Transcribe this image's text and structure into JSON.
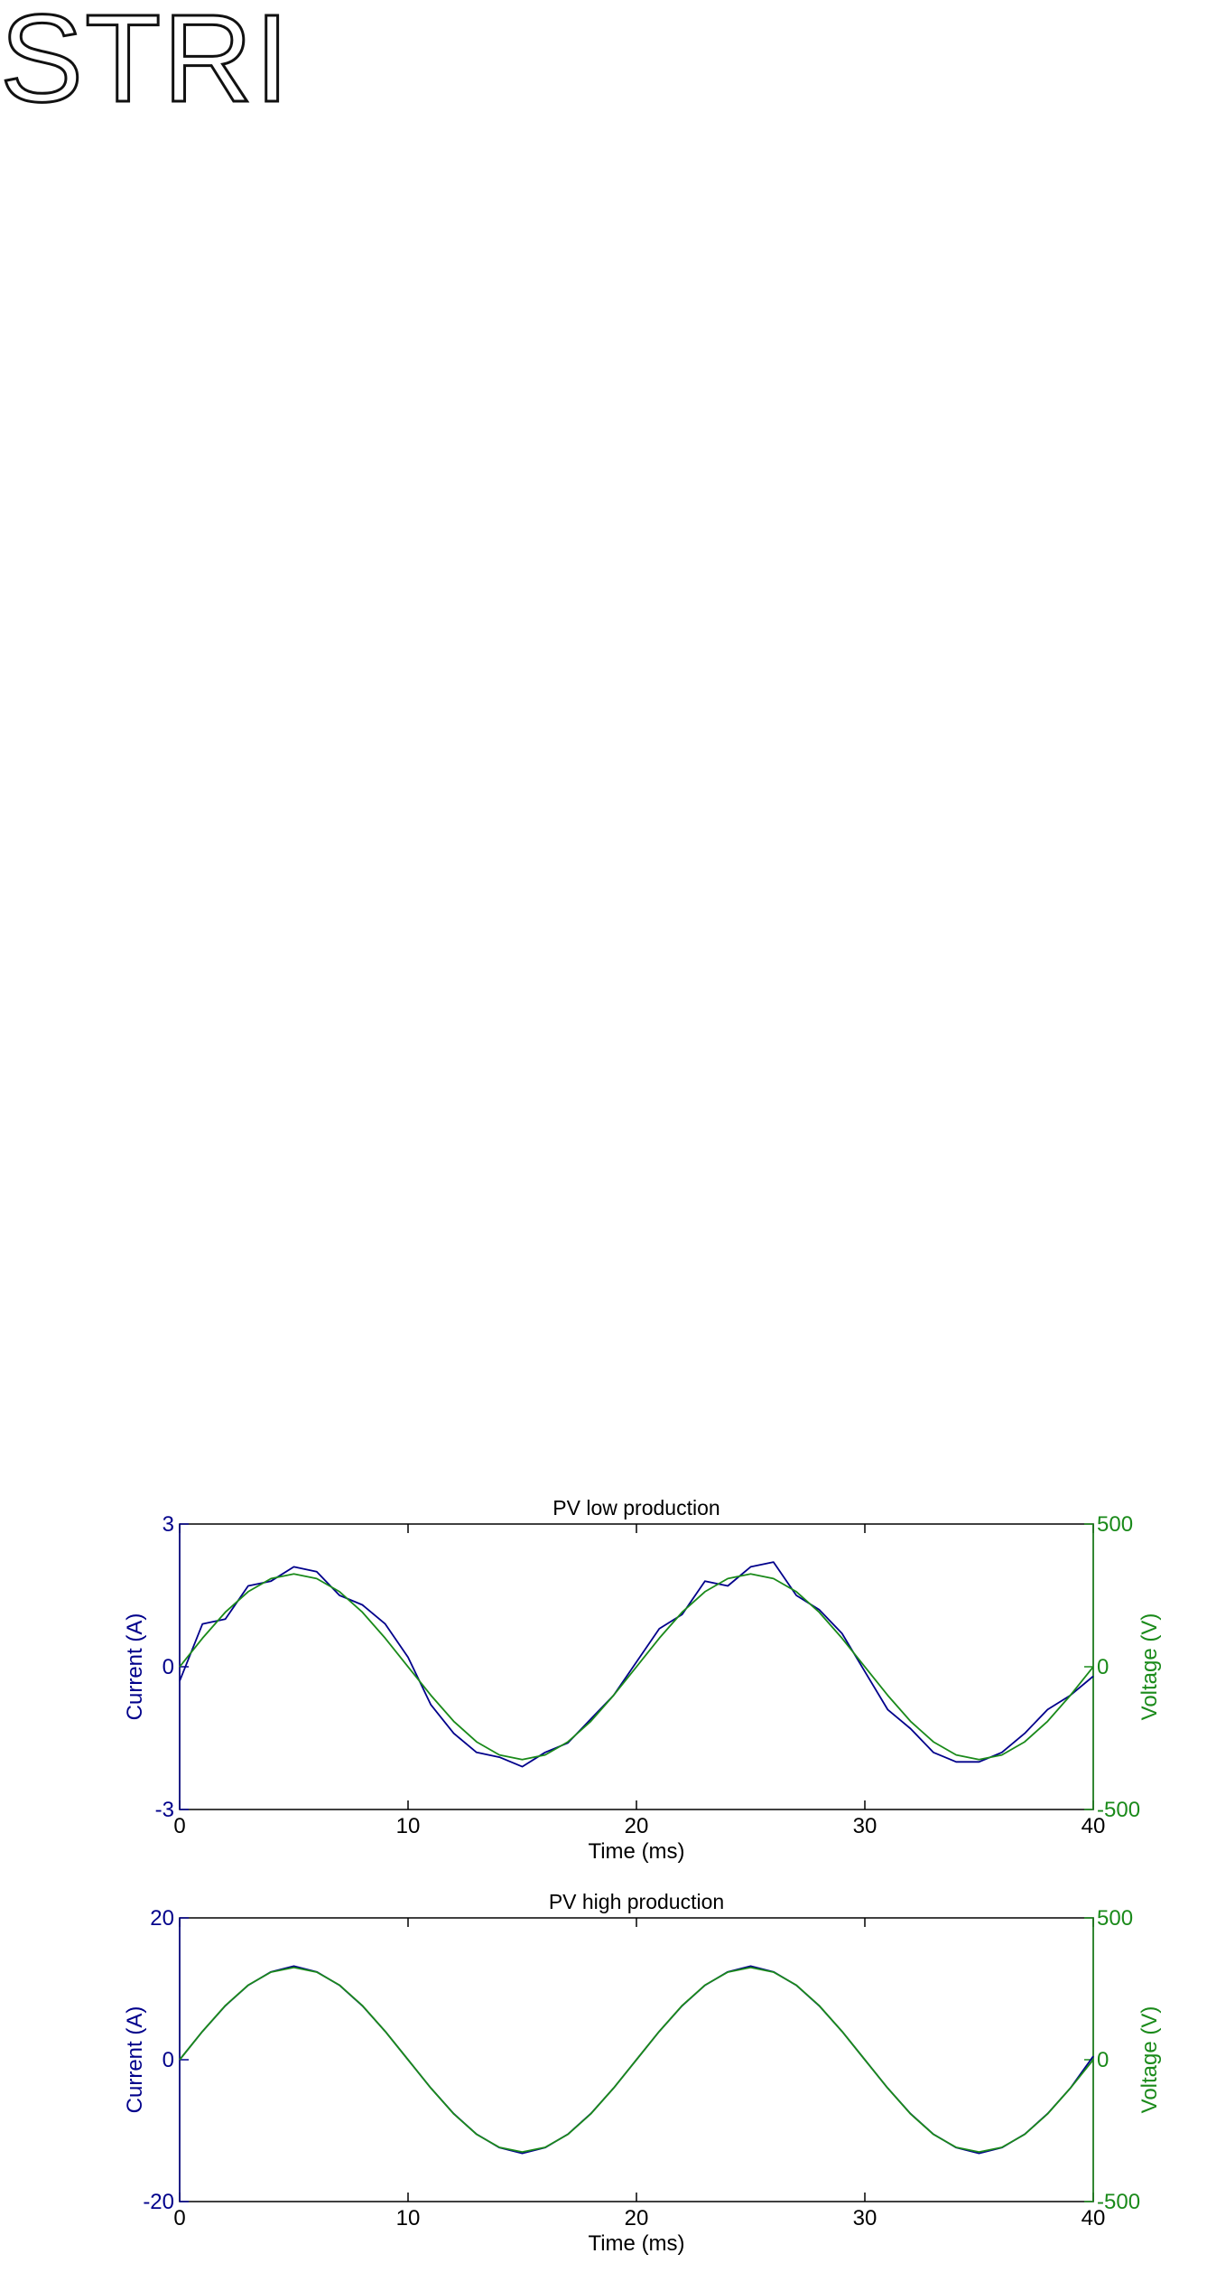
{
  "logo": "STRI",
  "chart_data": [
    {
      "type": "line",
      "title": "PV low production",
      "x_label": "Time (ms)",
      "y_label": "Current (A)",
      "y2_label": "Voltage (V)",
      "x": [
        0,
        1,
        2,
        3,
        4,
        5,
        6,
        7,
        8,
        9,
        10,
        11,
        12,
        13,
        14,
        15,
        16,
        17,
        18,
        19,
        20,
        21,
        22,
        23,
        24,
        25,
        26,
        27,
        28,
        29,
        30,
        31,
        32,
        33,
        34,
        35,
        36,
        37,
        38,
        39,
        40
      ],
      "xlim": [
        0,
        40
      ],
      "xticks": [
        0,
        10,
        20,
        30,
        40
      ],
      "ylim": [
        -3,
        3
      ],
      "yticks": [
        -3,
        0,
        3
      ],
      "y2lim": [
        -500,
        500
      ],
      "y2ticks": [
        -500,
        0,
        500
      ],
      "series": [
        {
          "color": "#00008b",
          "values": [
            -0.3,
            0.9,
            1.0,
            1.7,
            1.8,
            2.1,
            2.0,
            1.5,
            1.3,
            0.9,
            0.2,
            -0.8,
            -1.4,
            -1.8,
            -1.9,
            -2.1,
            -1.8,
            -1.6,
            -1.1,
            -0.6,
            0.1,
            0.8,
            1.1,
            1.8,
            1.7,
            2.1,
            2.2,
            1.5,
            1.2,
            0.7,
            -0.1,
            -0.9,
            -1.3,
            -1.8,
            -2.0,
            -2.0,
            -1.8,
            -1.4,
            -0.9,
            -0.6,
            -0.2
          ]
        },
        {
          "color": "#1a8a1a",
          "axis": "y2",
          "values": [
            0,
            100,
            191,
            263,
            309,
            325,
            309,
            263,
            191,
            100,
            0,
            -100,
            -191,
            -263,
            -309,
            -325,
            -309,
            -263,
            -191,
            -100,
            0,
            100,
            191,
            263,
            309,
            325,
            309,
            263,
            191,
            100,
            0,
            -100,
            -191,
            -263,
            -309,
            -325,
            -309,
            -263,
            -191,
            -100,
            0
          ]
        }
      ]
    },
    {
      "type": "line",
      "title": "PV high production",
      "x_label": "Time (ms)",
      "y_label": "Current (A)",
      "y2_label": "Voltage (V)",
      "x": [
        0,
        1,
        2,
        3,
        4,
        5,
        6,
        7,
        8,
        9,
        10,
        11,
        12,
        13,
        14,
        15,
        16,
        17,
        18,
        19,
        20,
        21,
        22,
        23,
        24,
        25,
        26,
        27,
        28,
        29,
        30,
        31,
        32,
        33,
        34,
        35,
        36,
        37,
        38,
        39,
        40
      ],
      "xlim": [
        0,
        40
      ],
      "xticks": [
        0,
        10,
        20,
        30,
        40
      ],
      "ylim": [
        -20,
        20
      ],
      "yticks": [
        -20,
        0,
        20
      ],
      "y2lim": [
        -500,
        500
      ],
      "y2ticks": [
        -500,
        0,
        500
      ],
      "series": [
        {
          "color": "#00008b",
          "values": [
            0,
            4.0,
            7.6,
            10.5,
            12.4,
            13.2,
            12.4,
            10.5,
            7.6,
            4.0,
            0,
            -4.0,
            -7.6,
            -10.5,
            -12.4,
            -13.2,
            -12.4,
            -10.5,
            -7.6,
            -4.0,
            0,
            4.0,
            7.6,
            10.5,
            12.4,
            13.2,
            12.4,
            10.5,
            7.6,
            4.0,
            0,
            -4.0,
            -7.6,
            -10.5,
            -12.4,
            -13.2,
            -12.4,
            -10.5,
            -7.6,
            -4.0,
            0.5
          ]
        },
        {
          "color": "#1a8a1a",
          "axis": "y2",
          "values": [
            0,
            100,
            191,
            263,
            309,
            325,
            309,
            263,
            191,
            100,
            0,
            -100,
            -191,
            -263,
            -309,
            -325,
            -309,
            -263,
            -191,
            -100,
            0,
            100,
            191,
            263,
            309,
            325,
            309,
            263,
            191,
            100,
            0,
            -100,
            -191,
            -263,
            -309,
            -325,
            -309,
            -263,
            -191,
            -100,
            0
          ]
        }
      ]
    }
  ]
}
